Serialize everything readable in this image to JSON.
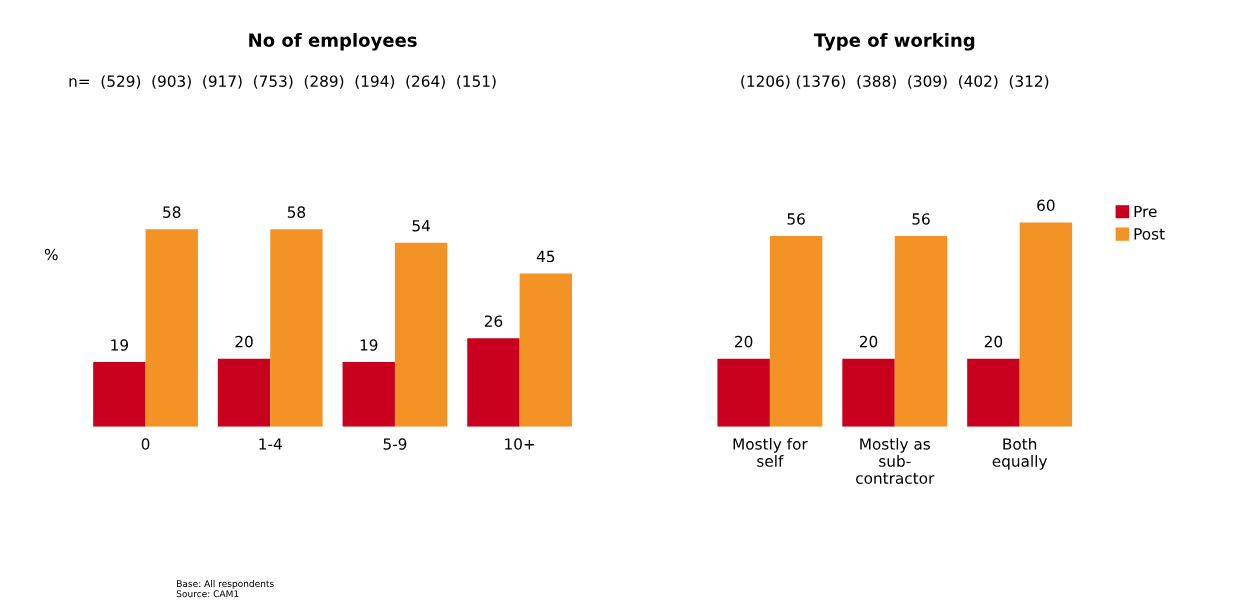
{
  "chart_data": [
    {
      "type": "bar",
      "title": "No of employees",
      "ylabel": "%",
      "categories": [
        "0",
        "1-4",
        "5-9",
        "10+"
      ],
      "series": [
        {
          "color": "#c8001e",
          "values": [
            19,
            20,
            19,
            26
          ]
        },
        {
          "color": "#f39325",
          "values": [
            58,
            58,
            54,
            45
          ]
        }
      ],
      "data_labels": true,
      "annotations": [
        "n=  (529)  (903)  (917)  (753)  (289)  (194)  (264)  (151)",
        "Base: All respondents\nSource: CAM1"
      ]
    },
    {
      "type": "bar",
      "title": "Type of working",
      "categories": [
        "Mostly for\nself",
        "Mostly as\nsub-\ncontractor",
        "Both\nequally"
      ],
      "series": [
        {
          "name": "Pre",
          "color": "#c8001e",
          "values": [
            20,
            20,
            20
          ]
        },
        {
          "name": "Post",
          "color": "#f39325",
          "values": [
            56,
            56,
            60
          ]
        }
      ],
      "data_labels": true,
      "legend": "right",
      "annotations": [
        "(1206) (1376)  (388)  (309)  (402)  (312)"
      ]
    }
  ]
}
